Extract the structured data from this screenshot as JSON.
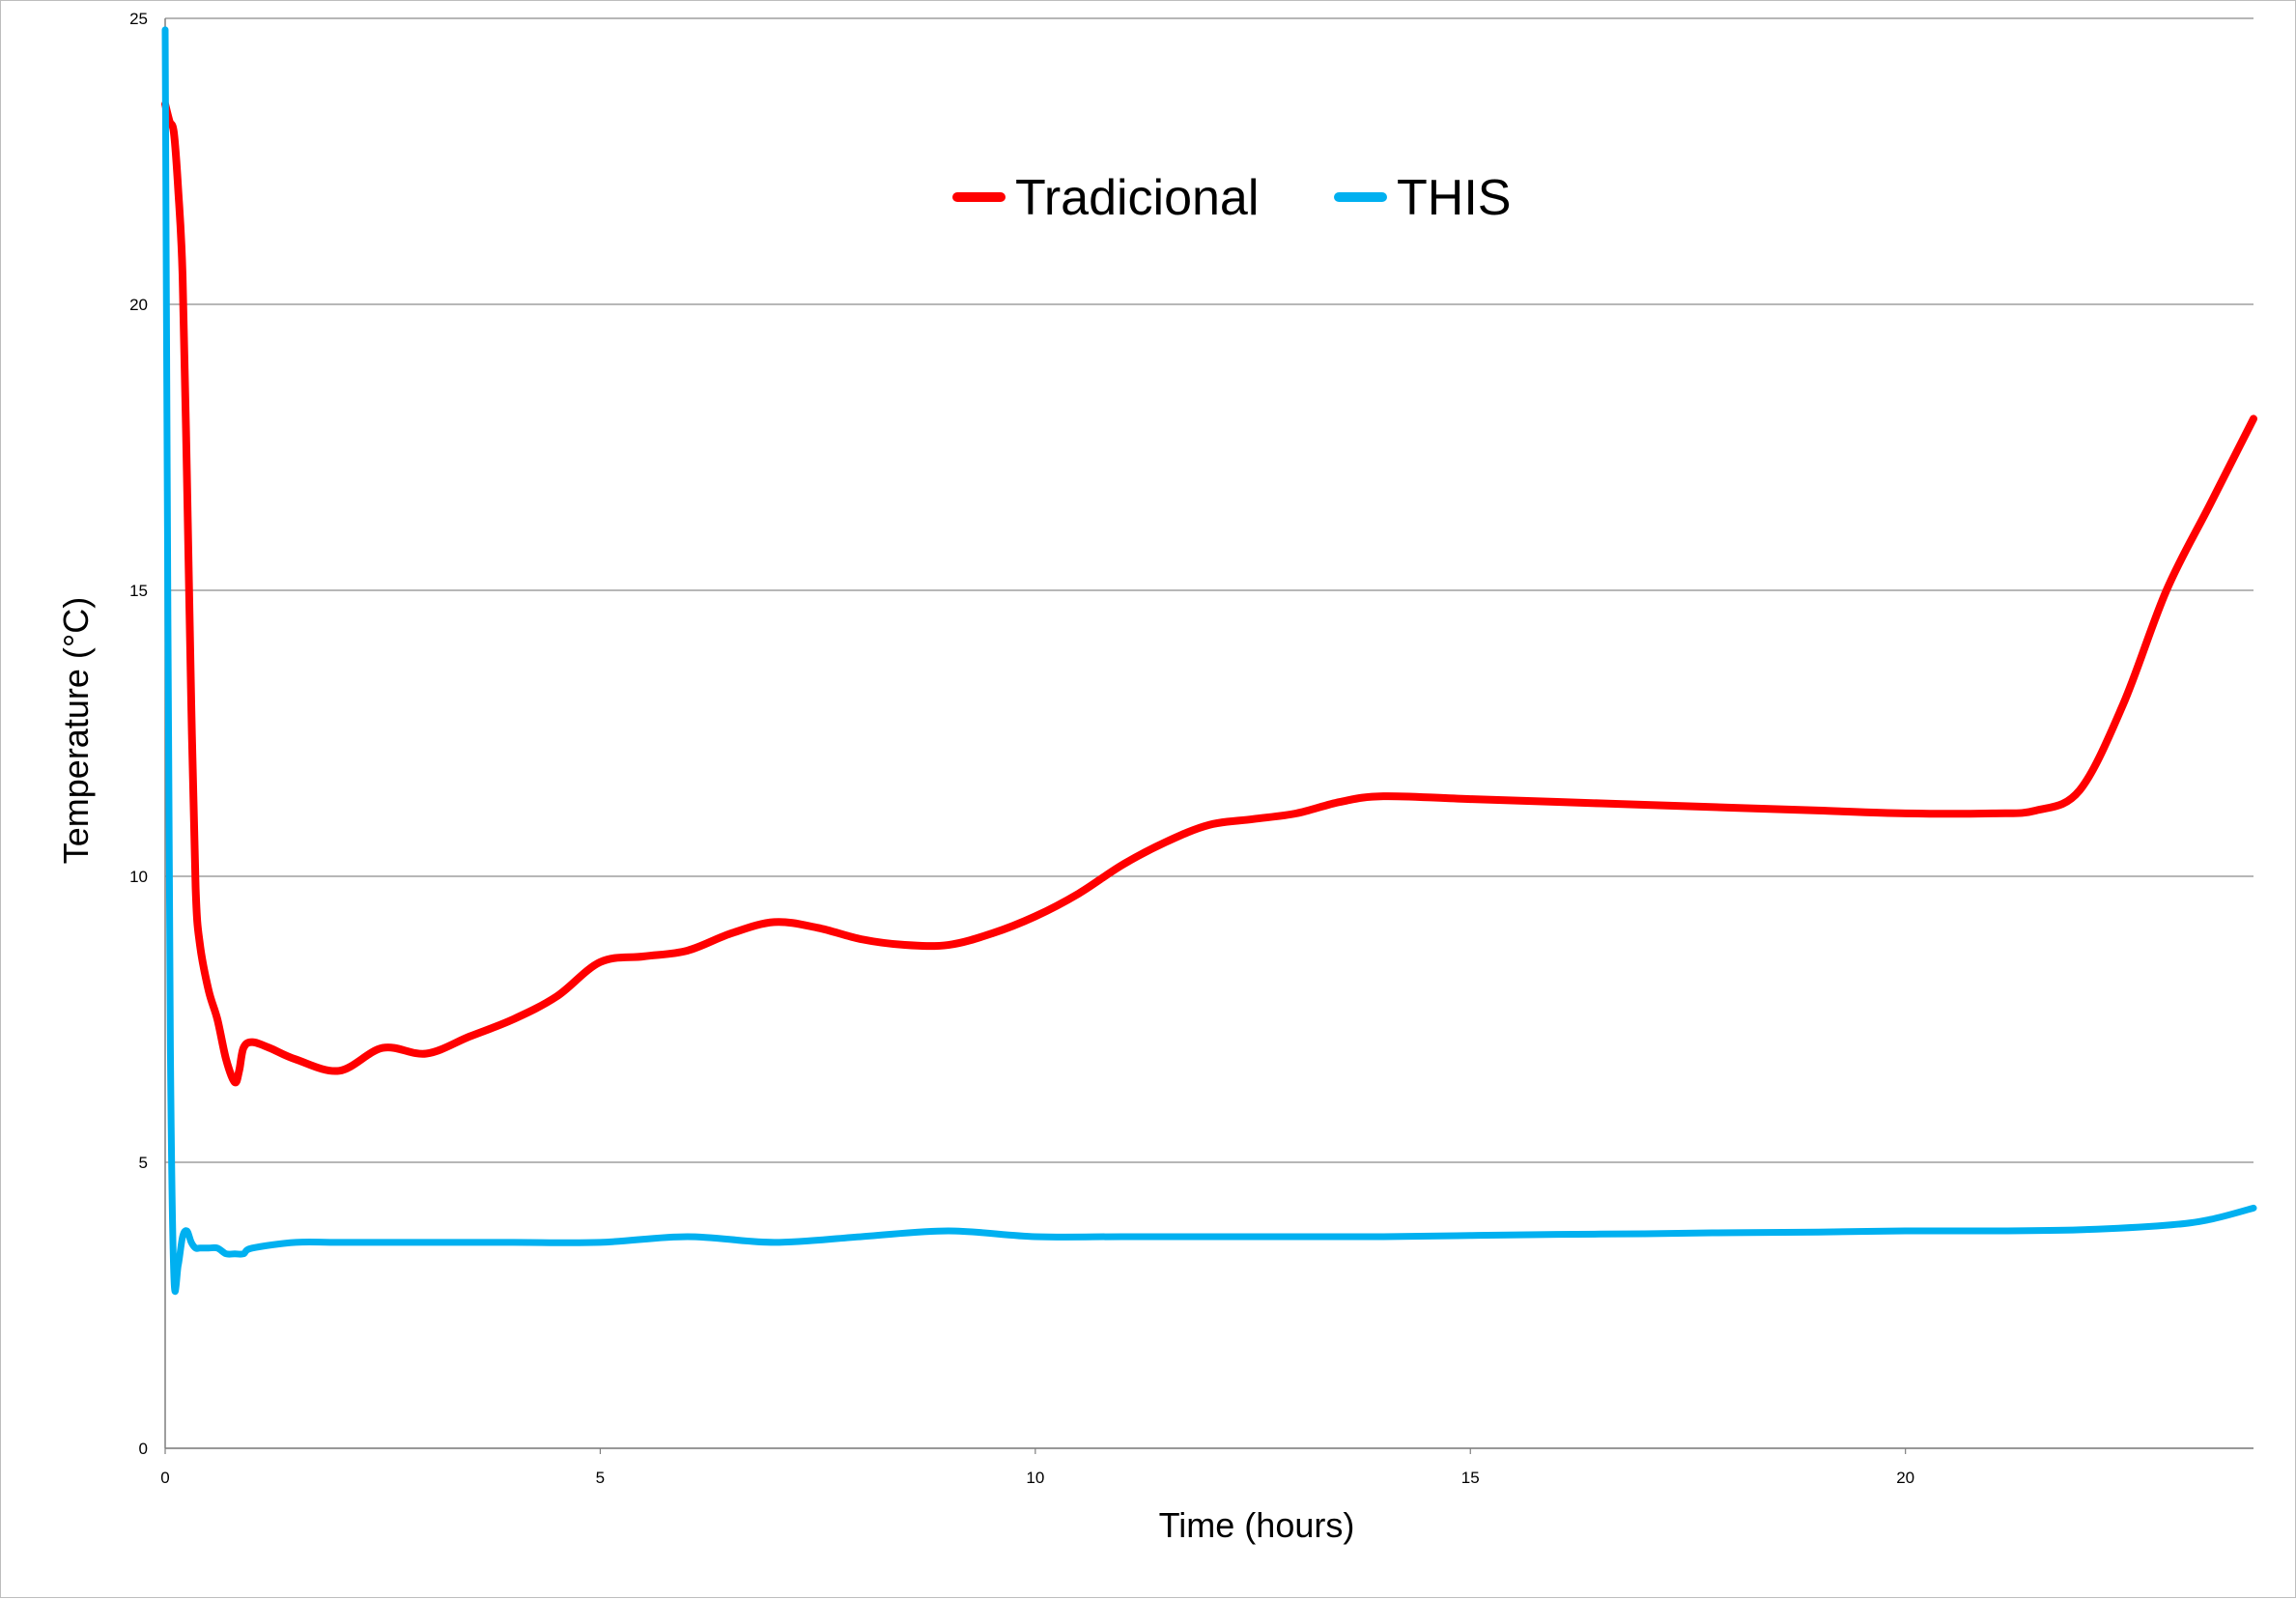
{
  "chart_data": {
    "type": "line",
    "xlabel": "Time (hours)",
    "ylabel": "Temperature (°C)",
    "xlim": [
      0,
      24
    ],
    "ylim": [
      0,
      25
    ],
    "x_ticks": [
      0,
      5,
      10,
      15,
      20
    ],
    "y_ticks": [
      0,
      5,
      10,
      15,
      20,
      25
    ],
    "grid": "horizontal",
    "legend_position": "top-center",
    "series": [
      {
        "name": "Tradicional",
        "color": "#ff0000",
        "x": [
          0.0,
          0.05,
          0.1,
          0.15,
          0.2,
          0.25,
          0.3,
          0.35,
          0.4,
          0.5,
          0.6,
          0.7,
          0.8,
          0.85,
          0.9,
          1.0,
          1.2,
          1.5,
          2.0,
          2.5,
          3.0,
          3.5,
          4.0,
          4.5,
          5.0,
          5.5,
          6.0,
          6.5,
          7.0,
          7.5,
          8.0,
          8.5,
          9.0,
          9.5,
          10.0,
          10.5,
          11.0,
          11.5,
          12.0,
          12.5,
          13.0,
          13.5,
          14.0,
          15.0,
          16.0,
          17.0,
          18.0,
          19.0,
          20.0,
          21.0,
          21.5,
          22.0,
          22.5,
          23.0,
          23.5,
          24.0
        ],
        "values": [
          23.5,
          23.2,
          23.0,
          22.0,
          20.5,
          17.0,
          13.0,
          9.8,
          8.8,
          8.0,
          7.5,
          6.8,
          6.4,
          6.6,
          7.0,
          7.1,
          7.0,
          6.8,
          6.6,
          7.0,
          6.9,
          7.2,
          7.5,
          7.9,
          8.5,
          8.6,
          8.7,
          9.0,
          9.2,
          9.1,
          8.9,
          8.8,
          8.8,
          9.0,
          9.3,
          9.7,
          10.2,
          10.6,
          10.9,
          11.0,
          11.1,
          11.3,
          11.4,
          11.35,
          11.3,
          11.25,
          11.2,
          11.15,
          11.1,
          11.1,
          11.15,
          11.5,
          13.0,
          15.0,
          16.5,
          18.0
        ]
      },
      {
        "name": "THIS",
        "color": "#00b0f0",
        "x": [
          0.0,
          0.03,
          0.06,
          0.1,
          0.15,
          0.2,
          0.25,
          0.3,
          0.35,
          0.4,
          0.5,
          0.6,
          0.7,
          0.8,
          0.9,
          1.0,
          1.5,
          2.0,
          3.0,
          4.0,
          5.0,
          6.0,
          7.0,
          8.0,
          9.0,
          10.0,
          11.0,
          12.0,
          13.0,
          14.0,
          15.0,
          16.0,
          17.0,
          18.0,
          19.0,
          20.0,
          21.0,
          22.0,
          23.0,
          23.5,
          24.0
        ],
        "values": [
          24.8,
          15.0,
          7.0,
          3.0,
          3.2,
          3.7,
          3.8,
          3.6,
          3.5,
          3.5,
          3.5,
          3.5,
          3.4,
          3.4,
          3.4,
          3.5,
          3.6,
          3.6,
          3.6,
          3.6,
          3.6,
          3.7,
          3.6,
          3.7,
          3.8,
          3.7,
          3.7,
          3.7,
          3.7,
          3.7,
          3.72,
          3.74,
          3.75,
          3.77,
          3.78,
          3.8,
          3.8,
          3.82,
          3.9,
          4.0,
          4.2
        ]
      }
    ]
  }
}
